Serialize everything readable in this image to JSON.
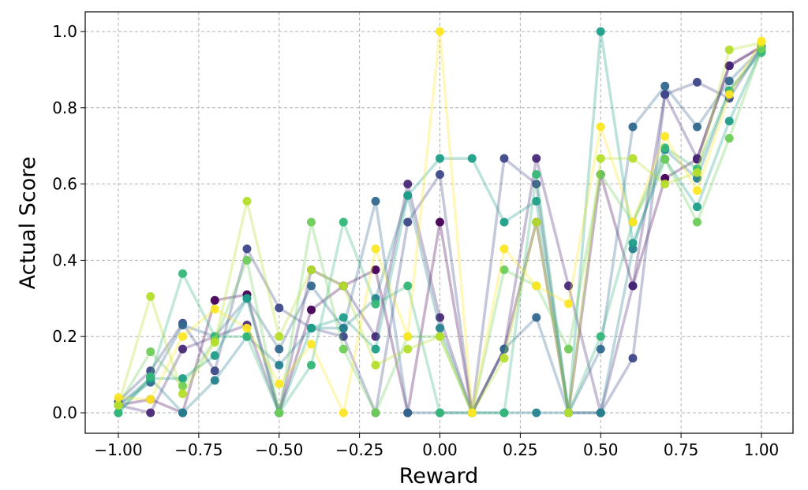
{
  "chart_data": {
    "type": "line",
    "title": "",
    "xlabel": "Reward",
    "ylabel": "Actual Score",
    "xlim": [
      -1.1,
      1.15
    ],
    "ylim": [
      -0.05,
      1.05
    ],
    "grid": true,
    "x": [
      -1.0,
      -0.9,
      -0.8,
      -0.7,
      -0.6,
      -0.5,
      -0.4,
      -0.3,
      -0.2,
      -0.1,
      0.0,
      0.1,
      0.2,
      0.3,
      0.4,
      0.5,
      0.6,
      0.7,
      0.8,
      0.9,
      1.0
    ],
    "xticks": [
      -1.0,
      -0.75,
      -0.5,
      -0.25,
      0.0,
      0.25,
      0.5,
      0.75,
      1.0
    ],
    "xtick_labels": [
      "−1.00",
      "−0.75",
      "−0.50",
      "−0.25",
      "0.00",
      "0.25",
      "0.50",
      "0.75",
      "1.00"
    ],
    "yticks": [
      0.0,
      0.2,
      0.4,
      0.6,
      0.8,
      1.0
    ],
    "ytick_labels": [
      "0.0",
      "0.2",
      "0.4",
      "0.6",
      "0.8",
      "1.0"
    ],
    "series": [
      {
        "color": "#440154",
        "values": [
          0.02,
          0.035,
          0.0,
          0.295,
          0.31,
          0.0,
          0.27,
          0.333,
          0.375,
          0.0,
          0.5,
          0.0,
          0.167,
          0.5,
          0.0,
          0.625,
          0.333,
          0.615,
          0.665,
          0.91,
          0.96
        ]
      },
      {
        "color": "#482878",
        "values": [
          0.02,
          0.0,
          0.167,
          0.2,
          0.23,
          0.0,
          0.375,
          0.333,
          0.2,
          0.6,
          0.25,
          0.0,
          0.167,
          0.667,
          0.333,
          0.0,
          0.333,
          0.835,
          0.667,
          0.91,
          0.96
        ]
      },
      {
        "color": "#3e4989",
        "values": [
          0.03,
          0.11,
          0.235,
          0.11,
          0.43,
          0.275,
          0.222,
          0.2,
          0.0,
          0.5,
          0.625,
          0.0,
          0.667,
          0.6,
          0.0,
          0.0,
          0.143,
          0.835,
          0.867,
          0.825,
          0.96
        ]
      },
      {
        "color": "#31688e",
        "values": [
          0.02,
          0.08,
          0.23,
          0.2,
          0.3,
          0.167,
          0.333,
          0.222,
          0.555,
          0.0,
          0.0,
          0.0,
          0.167,
          0.25,
          0.0,
          0.167,
          0.75,
          0.857,
          0.75,
          0.87,
          0.955
        ]
      },
      {
        "color": "#26828e",
        "values": [
          0.02,
          0.09,
          0.0,
          0.085,
          0.2,
          0.125,
          0.222,
          0.222,
          0.3,
          0.57,
          0.222,
          0.0,
          0.0,
          0.0,
          0.0,
          0.0,
          0.43,
          0.69,
          0.615,
          0.845,
          0.95
        ]
      },
      {
        "color": "#1f9e89",
        "values": [
          0.0,
          0.09,
          0.09,
          0.15,
          0.3,
          0.0,
          0.222,
          0.25,
          0.167,
          0.57,
          0.667,
          0.667,
          0.5,
          0.555,
          0.0,
          1.0,
          0.445,
          0.665,
          0.54,
          0.765,
          0.95
        ]
      },
      {
        "color": "#35b779",
        "values": [
          0.0,
          0.095,
          0.365,
          0.2,
          0.2,
          0.0,
          0.125,
          0.5,
          0.285,
          0.333,
          0.0,
          0.0,
          0.0,
          0.625,
          0.0,
          0.2,
          0.5,
          0.695,
          0.64,
          0.845,
          0.945
        ]
      },
      {
        "color": "#6ece58",
        "values": [
          0.02,
          0.16,
          0.07,
          0.19,
          0.4,
          0.0,
          0.5,
          0.167,
          0.0,
          0.2,
          0.2,
          0.0,
          0.375,
          0.333,
          0.167,
          0.625,
          0.5,
          0.665,
          0.5,
          0.72,
          0.955
        ]
      },
      {
        "color": "#b5de2b",
        "values": [
          0.02,
          0.305,
          0.05,
          0.185,
          0.555,
          0.2,
          0.375,
          0.333,
          0.125,
          0.167,
          0.2,
          0.0,
          0.143,
          0.5,
          0.0,
          0.667,
          0.667,
          0.6,
          0.63,
          0.952,
          0.97
        ]
      },
      {
        "color": "#fde725",
        "values": [
          0.04,
          0.035,
          0.2,
          0.272,
          0.222,
          0.076,
          0.18,
          0.0,
          0.43,
          0.2,
          1.0,
          0.0,
          0.43,
          0.333,
          0.286,
          0.75,
          0.5,
          0.725,
          0.583,
          0.835,
          0.975
        ]
      }
    ]
  }
}
